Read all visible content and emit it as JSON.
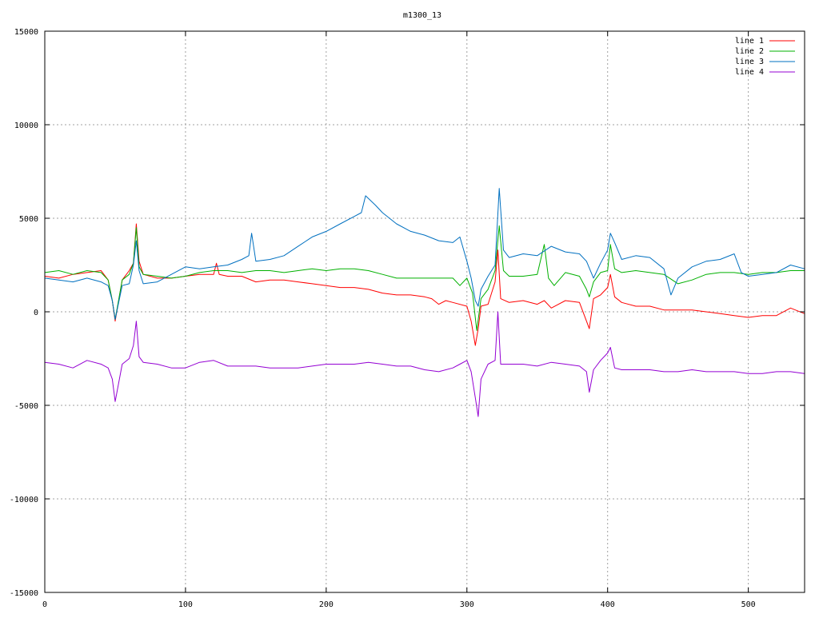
{
  "chart_data": {
    "type": "line",
    "title": "m1300_13",
    "xlabel": "",
    "ylabel": "",
    "xlim": [
      0,
      540
    ],
    "ylim": [
      -15000,
      15000
    ],
    "xticks": [
      0,
      100,
      200,
      300,
      400,
      500
    ],
    "yticks": [
      -15000,
      -10000,
      -5000,
      0,
      5000,
      10000,
      15000
    ],
    "grid": true,
    "legend_position": "top-right",
    "series": [
      {
        "name": "line 1",
        "color": "#ff0000",
        "x": [
          0,
          10,
          20,
          30,
          40,
          45,
          48,
          50,
          55,
          60,
          63,
          65,
          67,
          70,
          80,
          90,
          100,
          110,
          120,
          122,
          124,
          130,
          140,
          150,
          160,
          170,
          180,
          190,
          200,
          210,
          220,
          230,
          240,
          250,
          260,
          270,
          275,
          280,
          285,
          290,
          300,
          303,
          306,
          308,
          310,
          315,
          320,
          322,
          324,
          330,
          340,
          350,
          355,
          360,
          370,
          380,
          385,
          387,
          390,
          395,
          400,
          402,
          405,
          410,
          420,
          430,
          440,
          450,
          460,
          470,
          480,
          490,
          500,
          510,
          520,
          530,
          540
        ],
        "y": [
          1900,
          1800,
          2000,
          2100,
          2200,
          1700,
          600,
          -500,
          1700,
          2200,
          2600,
          4700,
          2700,
          2000,
          1800,
          1800,
          1900,
          2000,
          2000,
          2600,
          2000,
          1900,
          1900,
          1600,
          1700,
          1700,
          1600,
          1500,
          1400,
          1300,
          1300,
          1200,
          1000,
          900,
          900,
          800,
          700,
          400,
          600,
          500,
          300,
          -500,
          -1800,
          -900,
          300,
          400,
          1600,
          3300,
          700,
          500,
          600,
          400,
          600,
          200,
          600,
          500,
          -500,
          -900,
          700,
          900,
          1300,
          2000,
          800,
          500,
          300,
          300,
          100,
          100,
          100,
          0,
          -100,
          -200,
          -300,
          -200,
          -200,
          200,
          -100
        ]
      },
      {
        "name": "line 2",
        "color": "#00b000",
        "x": [
          0,
          10,
          20,
          30,
          40,
          45,
          48,
          50,
          55,
          60,
          63,
          65,
          67,
          70,
          80,
          90,
          100,
          110,
          120,
          130,
          140,
          150,
          160,
          170,
          180,
          190,
          200,
          210,
          220,
          230,
          240,
          250,
          260,
          270,
          280,
          290,
          295,
          300,
          304,
          307,
          310,
          315,
          320,
          323,
          326,
          330,
          340,
          350,
          355,
          358,
          362,
          370,
          380,
          385,
          387,
          390,
          395,
          400,
          402,
          405,
          410,
          420,
          430,
          440,
          450,
          460,
          470,
          480,
          490,
          500,
          510,
          520,
          530,
          540
        ],
        "y": [
          2100,
          2200,
          2000,
          2200,
          2100,
          1700,
          600,
          -400,
          1700,
          2000,
          2600,
          4500,
          2400,
          2000,
          1900,
          1800,
          1900,
          2100,
          2200,
          2200,
          2100,
          2200,
          2200,
          2100,
          2200,
          2300,
          2200,
          2300,
          2300,
          2200,
          2000,
          1800,
          1800,
          1800,
          1800,
          1800,
          1400,
          1800,
          1000,
          -1000,
          700,
          1200,
          2200,
          4600,
          2200,
          1900,
          1900,
          2000,
          3600,
          1800,
          1400,
          2100,
          1900,
          1200,
          800,
          1600,
          2100,
          2200,
          3600,
          2300,
          2100,
          2200,
          2100,
          2000,
          1500,
          1700,
          2000,
          2100,
          2100,
          2000,
          2100,
          2100,
          2200,
          2200
        ]
      },
      {
        "name": "line 3",
        "color": "#0070c0",
        "x": [
          0,
          10,
          20,
          30,
          40,
          45,
          48,
          50,
          55,
          60,
          63,
          65,
          67,
          70,
          80,
          90,
          100,
          110,
          120,
          130,
          140,
          145,
          147,
          150,
          160,
          170,
          180,
          190,
          200,
          210,
          220,
          225,
          228,
          235,
          240,
          250,
          260,
          270,
          280,
          290,
          295,
          300,
          303,
          306,
          308,
          310,
          315,
          320,
          323,
          326,
          330,
          340,
          350,
          360,
          370,
          380,
          385,
          390,
          395,
          400,
          402,
          405,
          410,
          420,
          430,
          440,
          445,
          450,
          460,
          470,
          480,
          490,
          495,
          500,
          510,
          520,
          530,
          540
        ],
        "y": [
          1800,
          1700,
          1600,
          1800,
          1600,
          1400,
          600,
          -400,
          1400,
          1500,
          2500,
          3800,
          2200,
          1500,
          1600,
          2000,
          2400,
          2300,
          2400,
          2500,
          2800,
          3000,
          4200,
          2700,
          2800,
          3000,
          3500,
          4000,
          4300,
          4700,
          5100,
          5300,
          6200,
          5700,
          5300,
          4700,
          4300,
          4100,
          3800,
          3700,
          4000,
          2700,
          1800,
          600,
          300,
          1200,
          1900,
          2500,
          6600,
          3300,
          2900,
          3100,
          3000,
          3500,
          3200,
          3100,
          2700,
          1800,
          2600,
          3300,
          4200,
          3700,
          2800,
          3000,
          2900,
          2300,
          900,
          1800,
          2400,
          2700,
          2800,
          3100,
          2100,
          1900,
          2000,
          2100,
          2500,
          2300
        ]
      },
      {
        "name": "line 4",
        "color": "#9400d3",
        "x": [
          0,
          10,
          20,
          30,
          40,
          45,
          48,
          50,
          55,
          60,
          63,
          65,
          67,
          70,
          80,
          90,
          100,
          110,
          120,
          130,
          140,
          150,
          160,
          170,
          180,
          190,
          200,
          210,
          220,
          230,
          240,
          250,
          260,
          270,
          280,
          290,
          295,
          300,
          303,
          306,
          308,
          310,
          315,
          320,
          322,
          324,
          330,
          340,
          350,
          360,
          370,
          380,
          385,
          387,
          390,
          395,
          400,
          402,
          405,
          410,
          420,
          430,
          440,
          450,
          460,
          470,
          480,
          490,
          500,
          510,
          520,
          530,
          540
        ],
        "y": [
          -2700,
          -2800,
          -3000,
          -2600,
          -2800,
          -3000,
          -3600,
          -4800,
          -2800,
          -2500,
          -1800,
          -500,
          -2400,
          -2700,
          -2800,
          -3000,
          -3000,
          -2700,
          -2600,
          -2900,
          -2900,
          -2900,
          -3000,
          -3000,
          -3000,
          -2900,
          -2800,
          -2800,
          -2800,
          -2700,
          -2800,
          -2900,
          -2900,
          -3100,
          -3200,
          -3000,
          -2800,
          -2600,
          -3200,
          -4600,
          -5600,
          -3600,
          -2800,
          -2600,
          0,
          -2800,
          -2800,
          -2800,
          -2900,
          -2700,
          -2800,
          -2900,
          -3200,
          -4300,
          -3100,
          -2600,
          -2200,
          -1900,
          -3000,
          -3100,
          -3100,
          -3100,
          -3200,
          -3200,
          -3100,
          -3200,
          -3200,
          -3200,
          -3300,
          -3300,
          -3200,
          -3200,
          -3300
        ]
      }
    ]
  }
}
